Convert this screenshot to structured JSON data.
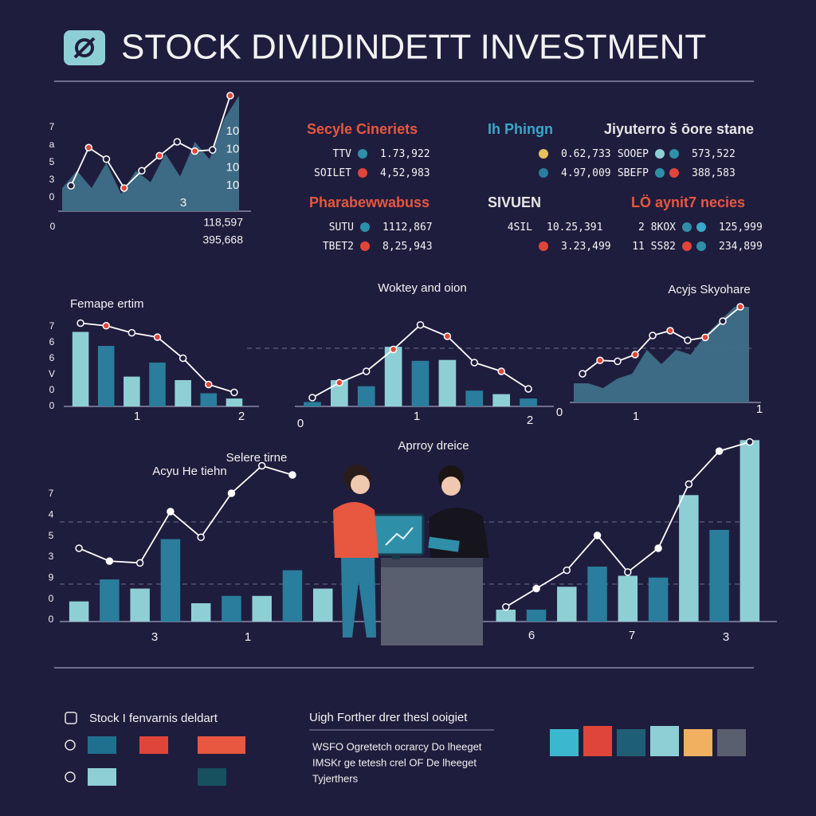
{
  "header": {
    "title": "STOCK DIVIDINDETT INVESTMENT"
  },
  "stats": [
    {
      "title": "Secyle Cineriets",
      "color": "#e8573f",
      "rows": [
        {
          "label": "TTV",
          "dots": [
            "#2f8fa8"
          ],
          "value": "1.73,922"
        },
        {
          "label": "SOILET",
          "dots": [
            "#e0453a"
          ],
          "value": "4,52,983"
        }
      ]
    },
    {
      "title": "Ih Phingn",
      "color": "#3aa8c8",
      "rows": [
        {
          "dots": [
            "#e8c060"
          ],
          "value": "0.62,733"
        },
        {
          "dots": [
            "#2a7d9c"
          ],
          "value": "4.97,009"
        }
      ]
    },
    {
      "title": "Jiyuterro š ōore stane",
      "color": "#e6e6e6",
      "rows": [
        {
          "label": "SOOEP",
          "dots": [
            "#8ecfd6",
            "#2f8fa8"
          ],
          "value": "573,522"
        },
        {
          "label": "SBEFP",
          "dots": [
            "#2f8fa8",
            "#e0453a"
          ],
          "value": "388,583"
        }
      ]
    },
    {
      "title": "Pharabewwabuss",
      "color": "#e8573f",
      "rows": [
        {
          "label": "SUTU",
          "dots": [
            "#2f8fa8"
          ],
          "value": "1112,867"
        },
        {
          "label": "TBET2",
          "dots": [
            "#e0453a"
          ],
          "value": "8,25,943"
        }
      ]
    },
    {
      "title": "SIVUEN",
      "color": "#e6e6e6",
      "rows": [
        {
          "label": "4SIL",
          "dots": [],
          "value": "10.25,391"
        },
        {
          "dots": [
            "#e0453a"
          ],
          "value": "3.23,499"
        }
      ]
    },
    {
      "title": "LÖ aynit7 necies",
      "color": "#e8573f",
      "rows": [
        {
          "label": "2 8KOX",
          "dots": [
            "#2f8fa8",
            "#3aa8c8"
          ],
          "value": "125,999"
        },
        {
          "label": "11 SS82",
          "dots": [
            "#e0453a",
            "#2f8fa8"
          ],
          "value": "234,899"
        }
      ]
    }
  ],
  "chart_data": [
    {
      "type": "combo",
      "y_labels": [
        "7",
        "a",
        "5",
        "3",
        "0"
      ],
      "x_labels": [
        "3"
      ],
      "right_labels": [
        "10",
        "10",
        "10",
        "10"
      ],
      "corner": "0",
      "footer": [
        "118,597",
        "395,668"
      ],
      "ylim": [
        0,
        10
      ],
      "series": [
        {
          "type": "area",
          "color": "#3f6f88",
          "values": [
            2,
            3.5,
            2,
            4.2,
            1.5,
            3.5,
            2.5,
            5,
            3,
            6,
            4.5,
            8,
            10
          ]
        },
        {
          "type": "line",
          "color": "#ffffff",
          "marker": "#e0453a",
          "values": [
            2.2,
            5.5,
            4.5,
            2,
            3.5,
            4.8,
            6,
            5.2,
            5.3,
            10
          ]
        }
      ]
    },
    {
      "type": "combo",
      "titles": [
        "Femape ertim"
      ],
      "y_labels": [
        "7",
        "6",
        "6",
        "V",
        "0",
        "0"
      ],
      "x_labels": [
        "1",
        "2"
      ],
      "ylim": [
        0,
        10
      ],
      "series": [
        {
          "type": "bar",
          "colors": [
            "#8ecfd6",
            "#2a7d9c"
          ],
          "values": [
            8.5,
            6.9,
            3.4,
            5,
            3,
            1.5,
            0.9
          ]
        },
        {
          "type": "line",
          "color": "#ffffff",
          "marker": "#e0453a",
          "values": [
            9.5,
            9.2,
            8.4,
            7.9,
            5.5,
            2.5,
            1.6
          ]
        }
      ]
    },
    {
      "type": "combo",
      "titles": [
        "Woktey and oion"
      ],
      "x_labels": [
        "0",
        "1",
        "2"
      ],
      "ylim": [
        0,
        10
      ],
      "series": [
        {
          "type": "bar",
          "colors": [
            "#2a7d9c",
            "#8ecfd6"
          ],
          "values": [
            0.5,
            3,
            2.3,
            6.8,
            5.2,
            5.3,
            1.8,
            1.4,
            0.9
          ]
        },
        {
          "type": "line",
          "color": "#ffffff",
          "marker": "#e0453a",
          "values": [
            1,
            2.7,
            4,
            6.5,
            9.3,
            8,
            5,
            4,
            2
          ]
        }
      ]
    },
    {
      "type": "combo",
      "titles": [
        "Acyjs Skyohare"
      ],
      "x_labels": [
        "0",
        "1",
        "1"
      ],
      "ylim": [
        0,
        10
      ],
      "series": [
        {
          "type": "area",
          "color": "#3f6f88",
          "values": [
            2,
            2,
            1.5,
            2.5,
            3,
            5.5,
            4,
            5.5,
            5,
            7,
            8.5,
            10,
            10
          ]
        },
        {
          "type": "line",
          "color": "#ffffff",
          "marker": "#e0453a",
          "values": [
            3,
            4.4,
            4.3,
            5,
            7,
            7.5,
            6.5,
            6.8,
            8.5,
            10
          ]
        }
      ]
    },
    {
      "type": "combo",
      "titles": [
        "Acyu He tiehn",
        "Selere tirne",
        "Aprroy dreice"
      ],
      "y_labels": [
        "7",
        "4",
        "5",
        "3",
        "9",
        "0",
        "0"
      ],
      "x_labels": [
        "3",
        "1",
        "6",
        "7",
        "3"
      ],
      "ylim": [
        0,
        10
      ],
      "series": [
        {
          "type": "bar",
          "colors": [
            "#8ecfd6",
            "#2a7d9c"
          ],
          "values": [
            1.1,
            2.3,
            1.8,
            4.5,
            1,
            1.4,
            1.4,
            2.8,
            1.8,
            null,
            null,
            null,
            null,
            null,
            0.65,
            0.65,
            1.9,
            3,
            2.5,
            2.4,
            6.9,
            5,
            9.9
          ]
        },
        {
          "type": "line",
          "color": "#ffffff",
          "marker": "#ffffff",
          "values": [
            4,
            3.3,
            3.2,
            6,
            4.6,
            7,
            8.5,
            8,
            null,
            null,
            null,
            null,
            null,
            null,
            0.8,
            1.8,
            2.8,
            4.7,
            2.7,
            4,
            7.5,
            9.3,
            9.8
          ]
        }
      ]
    }
  ],
  "legend": {
    "title": "Stock I fenvarnis deldart",
    "rows": [
      [
        "#1f6f8f",
        "#e0453a",
        "#e8573f"
      ],
      [
        "#8ecfd6",
        "#17505f"
      ]
    ]
  },
  "notes": {
    "title": "Uigh Forther drer thesl ooigiet",
    "lines": [
      "WSFO Ogretetch ocrarcy Do lheeget",
      "IMSKr ge tetesh crel OF De lheeget",
      "Tyjerthers"
    ]
  },
  "palette": [
    "#3cb7d0",
    "#e0453a",
    "#1f5f75",
    "#8ecfd6",
    "#f0b060",
    "#5a5f70"
  ]
}
